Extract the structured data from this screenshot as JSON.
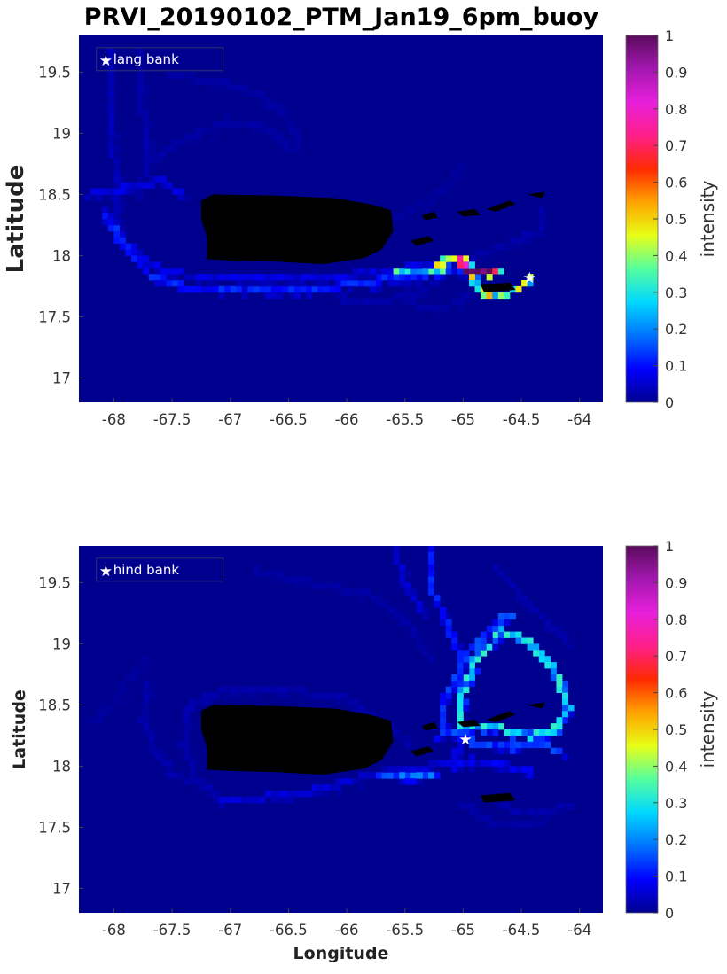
{
  "page": {
    "title": "PRVI_20190102_PTM_Jan19_6pm_buoy"
  },
  "colors": {
    "background_water": "#00008f",
    "land": "#000000",
    "colormap": [
      "#00008f",
      "#0000ff",
      "#0073ff",
      "#00d8ff",
      "#55ff9e",
      "#e8ff17",
      "#ffa400",
      "#ff2a00",
      "#ff1f8a",
      "#e81fdc",
      "#a318b0",
      "#5b0a5e"
    ]
  },
  "chart_data": [
    {
      "type": "heatmap",
      "title": "PRVI_20190102_PTM_Jan19_6pm_buoy",
      "xlabel": "",
      "ylabel": "Latitude",
      "xlim": [
        -68.3,
        -63.8
      ],
      "ylim": [
        16.8,
        19.8
      ],
      "xticks": [
        -68,
        -67.5,
        -67,
        -66.5,
        -66,
        -65.5,
        -65,
        -64.5,
        -64
      ],
      "yticks": [
        17,
        17.5,
        18,
        18.5,
        19,
        19.5
      ],
      "colorbar": {
        "label": "intensity",
        "range": [
          0,
          1
        ],
        "ticks": [
          0,
          0.1,
          0.2,
          0.3,
          0.4,
          0.5,
          0.6,
          0.7,
          0.8,
          0.9,
          1
        ]
      },
      "legend": {
        "entries": [
          "lang bank"
        ],
        "position": "top-left"
      },
      "release_site": {
        "name": "lang bank",
        "lon": -64.43,
        "lat": 17.82
      },
      "land_features": [
        "Puerto Rico",
        "Virgin Islands"
      ],
      "tracks": [
        {
          "points": [
            [
              -68.1,
              18.35
            ],
            [
              -67.95,
              18.15
            ],
            [
              -67.7,
              17.85
            ],
            [
              -67.4,
              17.75
            ],
            [
              -67.0,
              17.73
            ],
            [
              -66.5,
              17.72
            ],
            [
              -66.1,
              17.75
            ],
            [
              -65.7,
              17.8
            ],
            [
              -65.3,
              17.85
            ],
            [
              -65.0,
              17.87
            ],
            [
              -64.8,
              17.9
            ]
          ],
          "intensity": 0.1
        },
        {
          "points": [
            [
              -68.05,
              18.3
            ],
            [
              -67.9,
              18.1
            ],
            [
              -67.6,
              17.88
            ],
            [
              -67.2,
              17.82
            ],
            [
              -66.8,
              17.8
            ],
            [
              -66.3,
              17.8
            ],
            [
              -65.9,
              17.85
            ],
            [
              -65.5,
              17.9
            ],
            [
              -65.2,
              17.95
            ],
            [
              -64.95,
              17.98
            ]
          ],
          "intensity": 0.06
        },
        {
          "points": [
            [
              -65.25,
              17.9
            ],
            [
              -65.1,
              18.0
            ],
            [
              -64.95,
              17.95
            ],
            [
              -64.9,
              17.78
            ],
            [
              -64.8,
              17.68
            ],
            [
              -64.65,
              17.68
            ],
            [
              -64.5,
              17.75
            ],
            [
              -64.43,
              17.82
            ]
          ],
          "intensity": 0.4
        },
        {
          "points": [
            [
              -65.6,
              17.9
            ],
            [
              -65.35,
              17.85
            ],
            [
              -65.15,
              17.88
            ]
          ],
          "intensity": 0.3
        },
        {
          "points": [
            [
              -65.05,
              17.97
            ],
            [
              -64.95,
              17.9
            ],
            [
              -64.85,
              17.88
            ],
            [
              -64.7,
              17.9
            ]
          ],
          "intensity": 0.8
        },
        {
          "points": [
            [
              -68.2,
              18.5
            ],
            [
              -67.9,
              18.55
            ],
            [
              -67.6,
              18.62
            ],
            [
              -67.4,
              18.5
            ]
          ],
          "intensity": 0.06
        },
        {
          "points": [
            [
              -67.95,
              18.1
            ],
            [
              -67.95,
              18.4
            ],
            [
              -68.0,
              18.8
            ],
            [
              -68.05,
              19.2
            ],
            [
              -68.05,
              19.7
            ]
          ],
          "intensity": 0.03
        },
        {
          "points": [
            [
              -67.8,
              18.5
            ],
            [
              -67.7,
              18.8
            ],
            [
              -67.75,
              19.2
            ],
            [
              -67.8,
              19.7
            ]
          ],
          "intensity": 0.02
        },
        {
          "points": [
            [
              -67.7,
              18.75
            ],
            [
              -67.5,
              18.9
            ],
            [
              -67.3,
              19.0
            ],
            [
              -67.0,
              19.1
            ],
            [
              -66.7,
              19.05
            ],
            [
              -66.5,
              18.9
            ]
          ],
          "intensity": 0.015
        },
        {
          "points": [
            [
              -67.55,
              19.5
            ],
            [
              -67.3,
              19.45
            ],
            [
              -67.0,
              19.4
            ],
            [
              -66.7,
              19.3
            ],
            [
              -66.5,
              19.1
            ],
            [
              -66.4,
              18.9
            ]
          ],
          "intensity": 0.015
        },
        {
          "points": [
            [
              -66.3,
              17.85
            ],
            [
              -66.0,
              17.65
            ],
            [
              -65.7,
              17.62
            ],
            [
              -65.4,
              17.7
            ],
            [
              -65.2,
              17.8
            ]
          ],
          "intensity": 0.02
        },
        {
          "points": [
            [
              -65.45,
              17.85
            ],
            [
              -65.45,
              17.62
            ],
            [
              -65.3,
              17.55
            ],
            [
              -65.1,
              17.6
            ],
            [
              -64.95,
              17.7
            ]
          ],
          "intensity": 0.015
        },
        {
          "points": [
            [
              -65.9,
              18.25
            ],
            [
              -65.6,
              18.3
            ],
            [
              -65.3,
              18.45
            ],
            [
              -65.1,
              18.6
            ],
            [
              -65.0,
              18.75
            ]
          ],
          "intensity": 0.01
        },
        {
          "points": [
            [
              -64.9,
              18.0
            ],
            [
              -64.6,
              18.1
            ],
            [
              -64.35,
              18.2
            ],
            [
              -64.35,
              18.4
            ]
          ],
          "intensity": 0.02
        }
      ]
    },
    {
      "type": "heatmap",
      "title": "",
      "xlabel": "Longitude",
      "ylabel": "Latitude",
      "xlim": [
        -68.3,
        -63.8
      ],
      "ylim": [
        16.8,
        19.8
      ],
      "xticks": [
        -68,
        -67.5,
        -67,
        -66.5,
        -66,
        -65.5,
        -65,
        -64.5,
        -64
      ],
      "yticks": [
        17,
        17.5,
        18,
        18.5,
        19,
        19.5
      ],
      "colorbar": {
        "label": "intensity",
        "range": [
          0,
          1
        ],
        "ticks": [
          0,
          0.1,
          0.2,
          0.3,
          0.4,
          0.5,
          0.6,
          0.7,
          0.8,
          0.9,
          1
        ]
      },
      "legend": {
        "entries": [
          "hind bank"
        ],
        "position": "top-left"
      },
      "release_site": {
        "name": "hind bank",
        "lon": -64.98,
        "lat": 18.22
      },
      "land_features": [
        "Puerto Rico",
        "Virgin Islands"
      ],
      "tracks": [
        {
          "points": [
            [
              -65.05,
              18.3
            ],
            [
              -65.0,
              18.6
            ],
            [
              -64.9,
              18.85
            ],
            [
              -64.65,
              19.1
            ],
            [
              -64.4,
              19.0
            ],
            [
              -64.2,
              18.75
            ],
            [
              -64.1,
              18.5
            ],
            [
              -64.2,
              18.3
            ],
            [
              -64.4,
              18.25
            ],
            [
              -64.65,
              18.3
            ],
            [
              -64.9,
              18.3
            ],
            [
              -65.05,
              18.3
            ]
          ],
          "intensity": 0.25
        },
        {
          "points": [
            [
              -65.2,
              18.25
            ],
            [
              -65.15,
              18.55
            ],
            [
              -64.95,
              18.95
            ],
            [
              -64.6,
              19.25
            ]
          ],
          "intensity": 0.12
        },
        {
          "points": [
            [
              -65.3,
              19.8
            ],
            [
              -65.3,
              19.5
            ],
            [
              -65.15,
              19.2
            ],
            [
              -65.05,
              18.95
            ],
            [
              -65.0,
              18.7
            ]
          ],
          "intensity": 0.1
        },
        {
          "points": [
            [
              -65.15,
              18.3
            ],
            [
              -64.9,
              18.2
            ],
            [
              -64.6,
              18.15
            ],
            [
              -64.35,
              18.2
            ],
            [
              -64.15,
              18.1
            ]
          ],
          "intensity": 0.12
        },
        {
          "points": [
            [
              -65.1,
              18.0
            ],
            [
              -64.9,
              18.05
            ],
            [
              -64.6,
              18.0
            ],
            [
              -64.4,
              17.95
            ]
          ],
          "intensity": 0.07
        },
        {
          "points": [
            [
              -67.1,
              17.72
            ],
            [
              -66.7,
              17.75
            ],
            [
              -66.3,
              17.8
            ],
            [
              -66.0,
              17.87
            ],
            [
              -65.7,
              17.95
            ],
            [
              -65.35,
              17.98
            ],
            [
              -65.1,
              18.05
            ],
            [
              -64.98,
              18.22
            ]
          ],
          "intensity": 0.05
        },
        {
          "points": [
            [
              -65.7,
              17.95
            ],
            [
              -65.4,
              17.92
            ],
            [
              -65.2,
              17.95
            ]
          ],
          "intensity": 0.15
        },
        {
          "points": [
            [
              -67.1,
              17.72
            ],
            [
              -67.3,
              17.9
            ],
            [
              -67.4,
              18.2
            ],
            [
              -67.35,
              18.5
            ],
            [
              -67.1,
              18.6
            ],
            [
              -66.5,
              18.62
            ],
            [
              -66.0,
              18.55
            ],
            [
              -65.7,
              18.35
            ],
            [
              -65.45,
              18.2
            ]
          ],
          "intensity": 0.02
        },
        {
          "points": [
            [
              -67.7,
              18.7
            ],
            [
              -67.75,
              18.4
            ],
            [
              -67.65,
              18.15
            ],
            [
              -67.5,
              17.95
            ],
            [
              -67.3,
              17.85
            ]
          ],
          "intensity": 0.02
        },
        {
          "points": [
            [
              -66.8,
              19.6
            ],
            [
              -66.3,
              19.5
            ],
            [
              -65.8,
              19.4
            ],
            [
              -65.5,
              19.2
            ],
            [
              -65.3,
              18.9
            ]
          ],
          "intensity": 0.015
        },
        {
          "points": [
            [
              -65.6,
              19.8
            ],
            [
              -65.5,
              19.5
            ],
            [
              -65.35,
              19.25
            ]
          ],
          "intensity": 0.05
        },
        {
          "points": [
            [
              -64.8,
              17.75
            ],
            [
              -64.6,
              17.65
            ],
            [
              -64.3,
              17.6
            ],
            [
              -64.1,
              17.7
            ]
          ],
          "intensity": 0.02
        },
        {
          "points": [
            [
              -65.0,
              17.7
            ],
            [
              -64.8,
              17.55
            ],
            [
              -64.55,
              17.52
            ],
            [
              -64.3,
              17.55
            ]
          ],
          "intensity": 0.015
        },
        {
          "points": [
            [
              -64.7,
              19.6
            ],
            [
              -64.5,
              19.4
            ],
            [
              -64.3,
              19.2
            ],
            [
              -64.1,
              19.0
            ]
          ],
          "intensity": 0.02
        },
        {
          "points": [
            [
              -68.2,
              18.35
            ],
            [
              -68.0,
              18.5
            ],
            [
              -67.9,
              18.7
            ],
            [
              -67.7,
              18.85
            ]
          ],
          "intensity": 0.01
        }
      ]
    }
  ]
}
